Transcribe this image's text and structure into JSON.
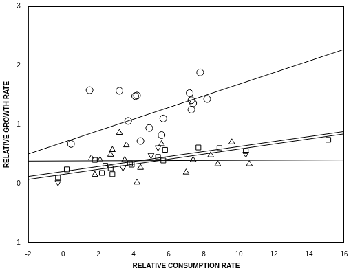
{
  "chart_data": {
    "type": "scatter",
    "xlabel": "RELATIVE CONSUMPTION RATE",
    "ylabel": "RELATIVE GROWTH RATE",
    "xlim": [
      -2,
      16
    ],
    "xticks": [
      -2,
      0,
      2,
      4,
      6,
      8,
      10,
      12,
      14,
      16
    ],
    "ylim": [
      -1,
      3
    ],
    "yticks": [
      -1,
      0,
      1,
      2,
      3
    ],
    "grid": false,
    "series": [
      {
        "type": "scatter",
        "marker": "circle",
        "color": "#000000",
        "x": [
          0.44,
          1.5,
          3.2,
          3.7,
          4.1,
          4.2,
          4.4,
          4.9,
          5.6,
          5.7,
          7.2,
          7.3,
          7.3,
          7.4,
          7.8,
          8.2
        ],
        "values": [
          0.67,
          1.58,
          1.57,
          1.06,
          1.48,
          1.49,
          0.72,
          0.94,
          0.82,
          1.1,
          1.53,
          1.41,
          1.25,
          1.36,
          1.88,
          1.43
        ]
      },
      {
        "type": "scatter",
        "marker": "triangle",
        "color": "#000000",
        "x": [
          1.6,
          1.8,
          2.1,
          2.7,
          2.8,
          3.2,
          3.5,
          3.6,
          4.2,
          4.4,
          5.6,
          7.0,
          7.4,
          8.4,
          8.8,
          9.6,
          10.6
        ],
        "values": [
          0.43,
          0.15,
          0.4,
          0.49,
          0.57,
          0.86,
          0.4,
          0.65,
          0.02,
          0.27,
          0.67,
          0.19,
          0.4,
          0.48,
          0.33,
          0.7,
          0.33
        ]
      },
      {
        "type": "scatter",
        "marker": "triangle_down",
        "color": "#000000",
        "x": [
          -0.3,
          3.4,
          5.0,
          5.4,
          10.4
        ],
        "values": [
          0.02,
          0.27,
          0.48,
          0.61,
          0.5
        ]
      },
      {
        "type": "scatter",
        "marker": "square",
        "color": "#000000",
        "x": [
          -0.3,
          0.2,
          1.8,
          2.2,
          2.4,
          2.7,
          2.8,
          3.8,
          3.9,
          5.4,
          5.7,
          5.8,
          7.7,
          8.9,
          10.4,
          15.1
        ],
        "values": [
          0.1,
          0.24,
          0.4,
          0.18,
          0.3,
          0.26,
          0.16,
          0.34,
          0.32,
          0.45,
          0.39,
          0.57,
          0.61,
          0.6,
          0.55,
          0.74
        ]
      },
      {
        "type": "line",
        "line_style": "solid",
        "color": "#000000",
        "x": [
          -2,
          16
        ],
        "values": [
          0.5,
          2.27
        ]
      },
      {
        "type": "line",
        "line_style": "solid",
        "color": "#000000",
        "x": [
          -2,
          16
        ],
        "values": [
          0.12,
          0.88
        ]
      },
      {
        "type": "line",
        "line_style": "solid",
        "color": "#000000",
        "x": [
          -2,
          16
        ],
        "values": [
          0.07,
          0.84
        ]
      },
      {
        "type": "line",
        "line_style": "solid",
        "color": "#000000",
        "x": [
          -2,
          16
        ],
        "values": [
          0.38,
          0.4
        ]
      }
    ]
  }
}
